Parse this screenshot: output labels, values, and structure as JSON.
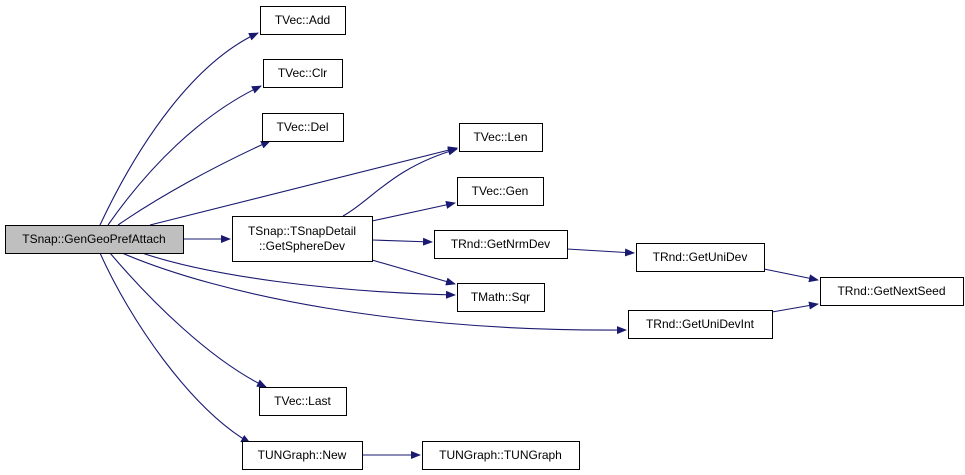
{
  "colors": {
    "edge": "#191970",
    "root_fill": "#bfbfbf",
    "node_fill": "#ffffff"
  },
  "nodes": [
    {
      "id": "root",
      "lines": [
        "TSnap::GenGeoPrefAttach"
      ],
      "root": true
    },
    {
      "id": "add",
      "lines": [
        "TVec::Add"
      ]
    },
    {
      "id": "clr",
      "lines": [
        "TVec::Clr"
      ]
    },
    {
      "id": "del",
      "lines": [
        "TVec::Del"
      ]
    },
    {
      "id": "sphere",
      "lines": [
        "TSnap::TSnapDetail",
        "::GetSphereDev"
      ]
    },
    {
      "id": "len",
      "lines": [
        "TVec::Len"
      ]
    },
    {
      "id": "gen",
      "lines": [
        "TVec::Gen"
      ]
    },
    {
      "id": "nrm",
      "lines": [
        "TRnd::GetNrmDev"
      ]
    },
    {
      "id": "sqr",
      "lines": [
        "TMath::Sqr"
      ]
    },
    {
      "id": "unidev",
      "lines": [
        "TRnd::GetUniDev"
      ]
    },
    {
      "id": "seed",
      "lines": [
        "TRnd::GetNextSeed"
      ]
    },
    {
      "id": "unidevint",
      "lines": [
        "TRnd::GetUniDevInt"
      ]
    },
    {
      "id": "last",
      "lines": [
        "TVec::Last"
      ]
    },
    {
      "id": "new",
      "lines": [
        "TUNGraph::New"
      ]
    },
    {
      "id": "tungraph",
      "lines": [
        "TUNGraph::TUNGraph"
      ]
    }
  ],
  "edges": [
    [
      "root",
      "add"
    ],
    [
      "root",
      "clr"
    ],
    [
      "root",
      "del"
    ],
    [
      "root",
      "len"
    ],
    [
      "root",
      "sphere"
    ],
    [
      "root",
      "sqr"
    ],
    [
      "root",
      "unidevint"
    ],
    [
      "root",
      "last"
    ],
    [
      "root",
      "new"
    ],
    [
      "sphere",
      "len"
    ],
    [
      "sphere",
      "gen"
    ],
    [
      "sphere",
      "nrm"
    ],
    [
      "sphere",
      "sqr"
    ],
    [
      "nrm",
      "unidev"
    ],
    [
      "unidev",
      "seed"
    ],
    [
      "unidevint",
      "seed"
    ],
    [
      "new",
      "tungraph"
    ]
  ]
}
